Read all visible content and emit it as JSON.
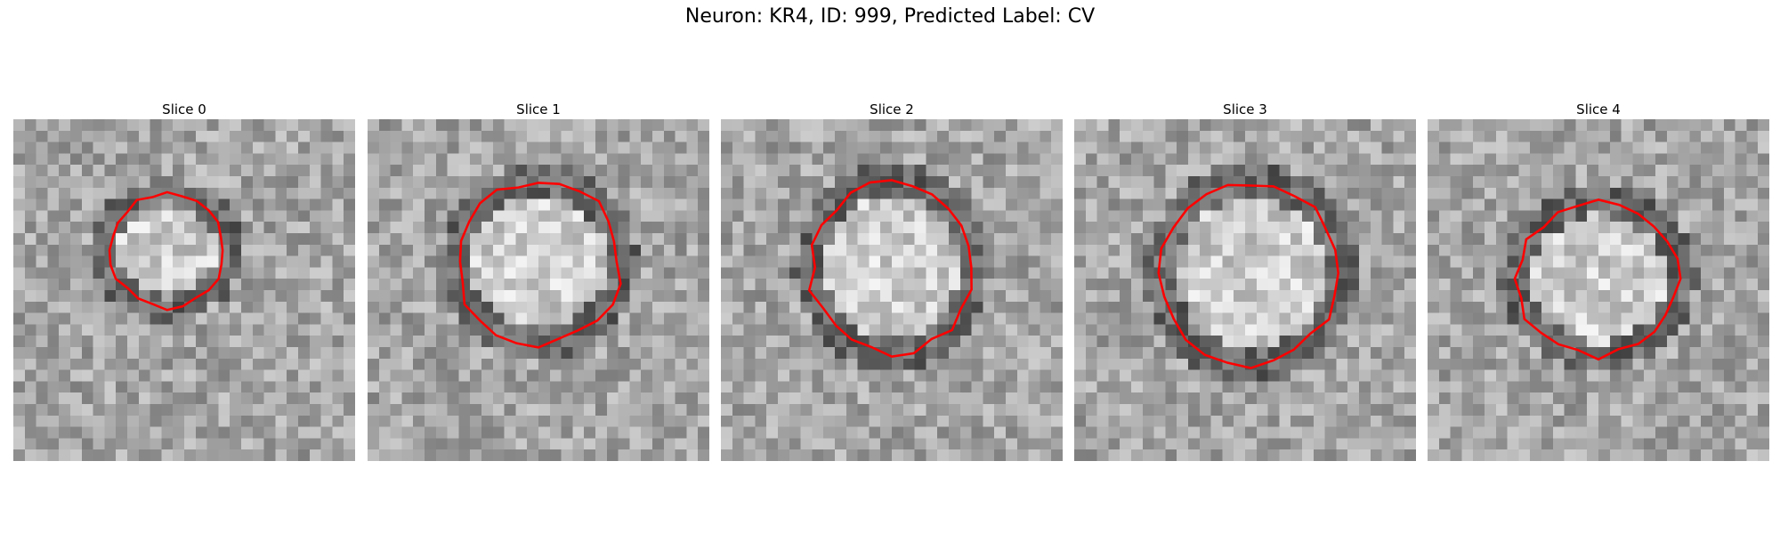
{
  "figure": {
    "title": "Neuron: KR4, ID: 999, Predicted Label: CV"
  },
  "slices": [
    {
      "label": "Slice 0"
    },
    {
      "label": "Slice 1"
    },
    {
      "label": "Slice 2"
    },
    {
      "label": "Slice 3"
    },
    {
      "label": "Slice 4"
    }
  ],
  "colors": {
    "contour": "#ff0000",
    "background": "#ffffff"
  }
}
